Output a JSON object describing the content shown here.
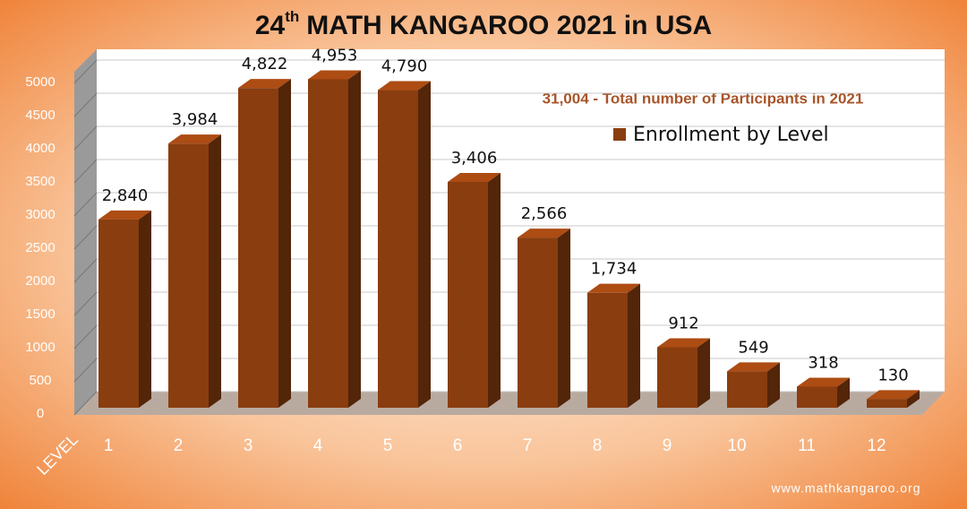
{
  "chart_data": {
    "type": "bar3d",
    "title": {
      "number": "24",
      "ordinal": "th",
      "text": "MATH KANGAROO 2021 in USA"
    },
    "annotation": "31,004 - Total number of Participants in 2021",
    "x_label": "LEVEL",
    "watermark": "www.mathkangaroo.org",
    "categories": [
      "1",
      "2",
      "3",
      "4",
      "5",
      "6",
      "7",
      "8",
      "9",
      "10",
      "11",
      "12"
    ],
    "series": [
      {
        "name": "Enrollment by Level",
        "color": "#8a3d0f",
        "values": [
          2840,
          3984,
          4822,
          4953,
          4790,
          3406,
          2566,
          1734,
          912,
          549,
          318,
          130
        ],
        "value_labels": [
          "2,840",
          "3,984",
          "4,822",
          "4,953",
          "4,790",
          "3,406",
          "2,566",
          "1,734",
          "912",
          "549",
          "318",
          "130"
        ]
      }
    ],
    "ylim": [
      0,
      5000
    ],
    "yticks": [
      0,
      500,
      1000,
      1500,
      2000,
      2500,
      3000,
      3500,
      4000,
      4500,
      5000
    ],
    "grid": true
  }
}
